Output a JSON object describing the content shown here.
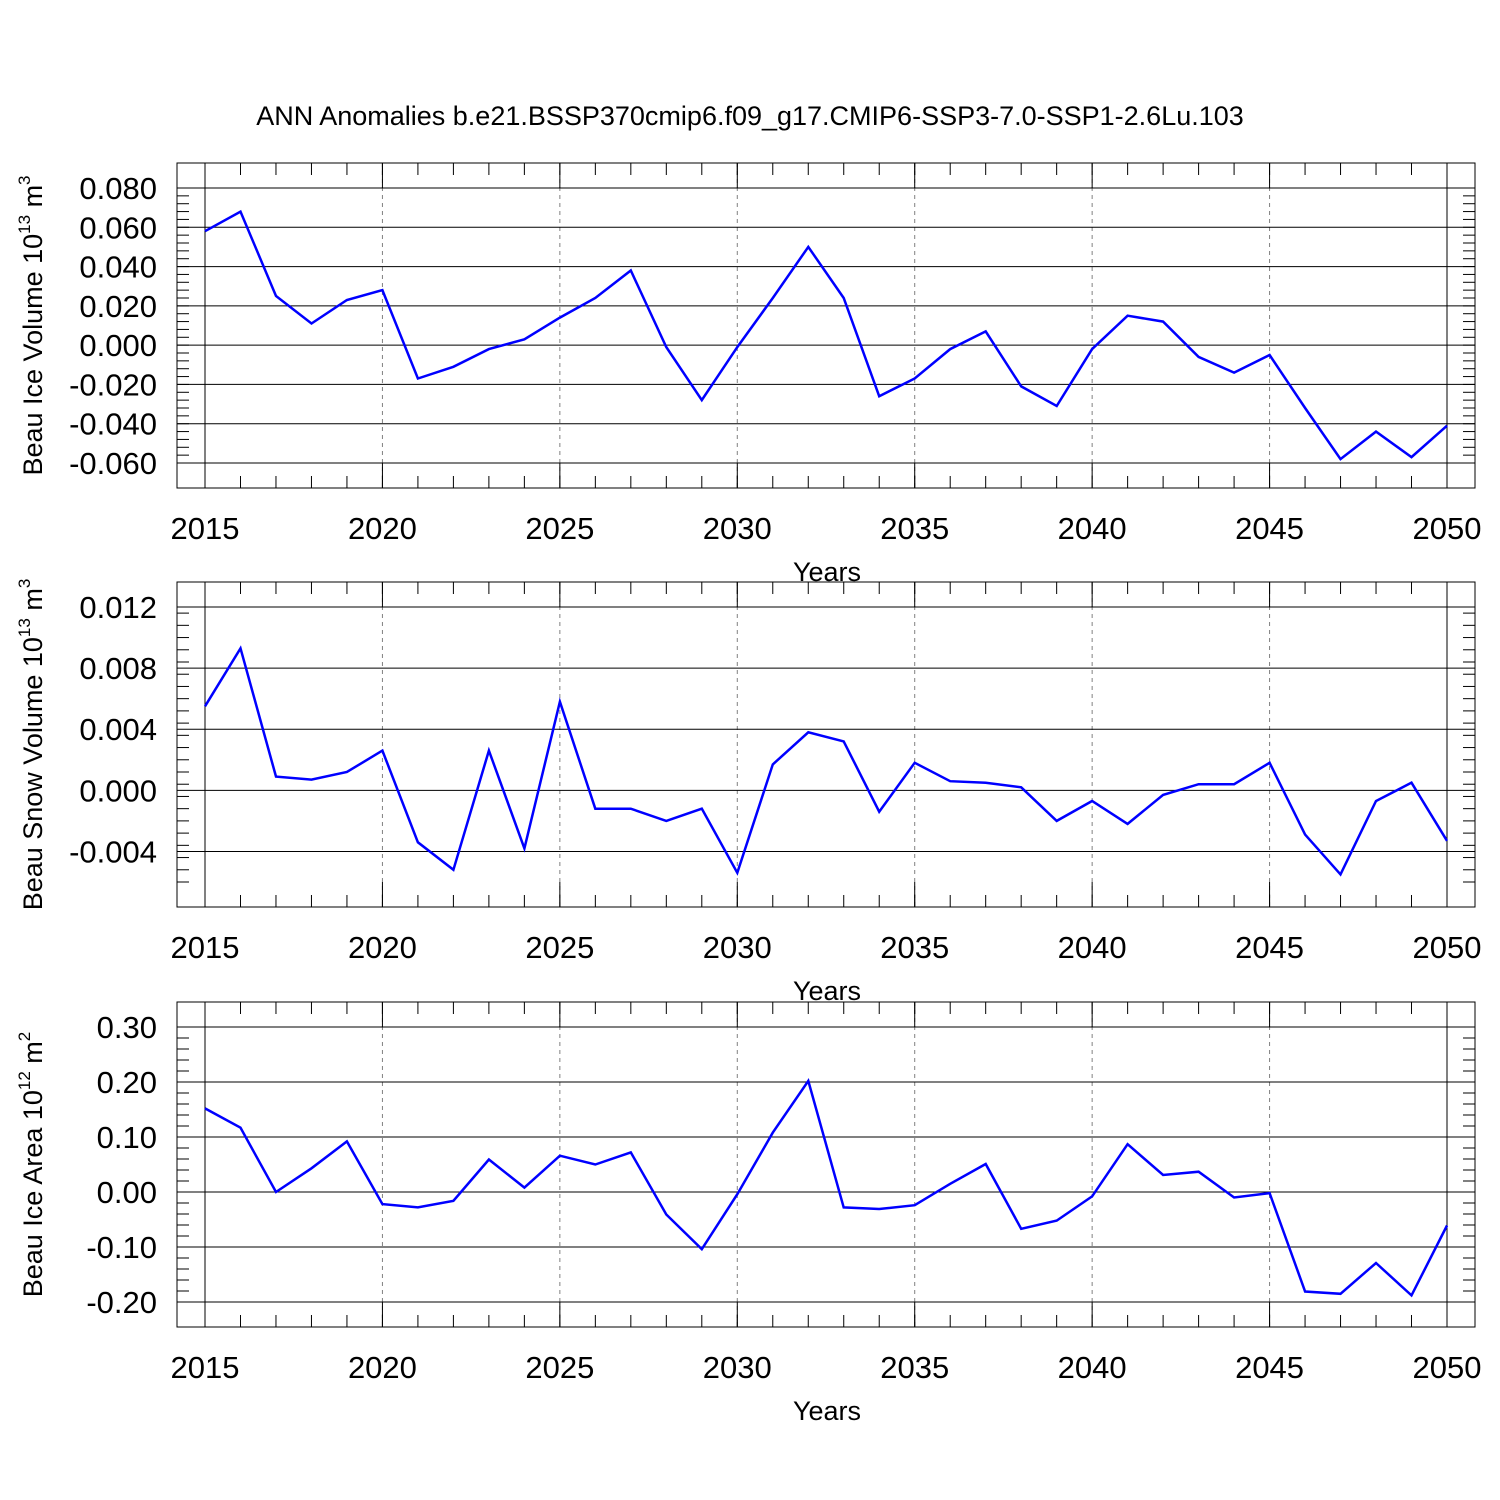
{
  "title": "ANN Anomalies b.e21.BSSP370cmip6.f09_g17.CMIP6-SSP3-7.0-SSP1-2.6Lu.103",
  "colors": {
    "line": "#0000ff",
    "axes": "#000000",
    "grid": "#808080"
  },
  "chart_data": [
    {
      "type": "line",
      "ylabel": {
        "text": "Beau Ice Volume 10",
        "exp": "13",
        "unit": " m",
        "unit_exp": "3"
      },
      "xlabel": "Years",
      "xlim": [
        2015,
        2050
      ],
      "ylim": [
        -0.06,
        0.08
      ],
      "x_ticks": [
        "2015",
        "2020",
        "2025",
        "2030",
        "2035",
        "2040",
        "2045",
        "2050"
      ],
      "y_ticks": [
        "-0.060",
        "-0.040",
        "-0.020",
        "0.000",
        "0.020",
        "0.040",
        "0.060",
        "0.080"
      ],
      "grid": "dashed vertical lines at major x ticks",
      "x": [
        2015,
        2016,
        2017,
        2018,
        2019,
        2020,
        2021,
        2022,
        2023,
        2024,
        2025,
        2026,
        2027,
        2028,
        2029,
        2030,
        2031,
        2032,
        2033,
        2034,
        2035,
        2036,
        2037,
        2038,
        2039,
        2040,
        2041,
        2042,
        2043,
        2044,
        2045,
        2046,
        2047,
        2048,
        2049,
        2050
      ],
      "series": [
        {
          "values": [
            0.058,
            0.068,
            0.025,
            0.011,
            0.023,
            0.028,
            -0.017,
            -0.011,
            -0.002,
            0.003,
            0.014,
            0.024,
            0.038,
            -0.001,
            -0.028,
            -0.001,
            0.024,
            0.05,
            0.024,
            -0.026,
            -0.017,
            -0.002,
            0.007,
            -0.021,
            -0.031,
            -0.002,
            0.015,
            0.012,
            -0.006,
            -0.014,
            -0.005,
            -0.032,
            -0.058,
            -0.044,
            -0.057,
            -0.041
          ]
        }
      ]
    },
    {
      "type": "line",
      "ylabel": {
        "text": "Beau Snow Volume 10",
        "exp": "13",
        "unit": " m",
        "unit_exp": "3"
      },
      "xlabel": "Years",
      "xlim": [
        2015,
        2050
      ],
      "ylim": [
        -0.006,
        0.012
      ],
      "x_ticks": [
        "2015",
        "2020",
        "2025",
        "2030",
        "2035",
        "2040",
        "2045",
        "2050"
      ],
      "y_ticks": [
        "-0.004",
        "0.000",
        "0.004",
        "0.008",
        "0.012"
      ],
      "grid": "dashed vertical lines at major x ticks",
      "x": [
        2015,
        2016,
        2017,
        2018,
        2019,
        2020,
        2021,
        2022,
        2023,
        2024,
        2025,
        2026,
        2027,
        2028,
        2029,
        2030,
        2031,
        2032,
        2033,
        2034,
        2035,
        2036,
        2037,
        2038,
        2039,
        2040,
        2041,
        2042,
        2043,
        2044,
        2045,
        2046,
        2047,
        2048,
        2049,
        2050
      ],
      "series": [
        {
          "values": [
            0.0055,
            0.0093,
            0.0009,
            0.0007,
            0.0012,
            0.0026,
            -0.0034,
            -0.0052,
            0.0026,
            -0.0038,
            0.0058,
            -0.0012,
            -0.0012,
            -0.002,
            -0.0012,
            -0.0054,
            0.0017,
            0.0038,
            0.0032,
            -0.0014,
            0.0018,
            0.0006,
            0.0005,
            0.0002,
            -0.002,
            -0.0007,
            -0.0022,
            -0.0003,
            0.0004,
            0.0004,
            0.0018,
            -0.0029,
            -0.0055,
            -0.0007,
            0.0005,
            -0.0033
          ]
        }
      ]
    },
    {
      "type": "line",
      "ylabel": {
        "text": "Beau Ice Area 10",
        "exp": "12",
        "unit": " m",
        "unit_exp": "2"
      },
      "xlabel": "Years",
      "xlim": [
        2015,
        2050
      ],
      "ylim": [
        -0.2,
        0.3
      ],
      "x_ticks": [
        "2015",
        "2020",
        "2025",
        "2030",
        "2035",
        "2040",
        "2045",
        "2050"
      ],
      "y_ticks": [
        "-0.20",
        "-0.10",
        "0.00",
        "0.10",
        "0.20",
        "0.30"
      ],
      "grid": "dashed vertical lines at major x ticks",
      "x": [
        2015,
        2016,
        2017,
        2018,
        2019,
        2020,
        2021,
        2022,
        2023,
        2024,
        2025,
        2026,
        2027,
        2028,
        2029,
        2030,
        2031,
        2032,
        2033,
        2034,
        2035,
        2036,
        2037,
        2038,
        2039,
        2040,
        2041,
        2042,
        2043,
        2044,
        2045,
        2046,
        2047,
        2048,
        2049,
        2050
      ],
      "series": [
        {
          "values": [
            0.152,
            0.117,
            0.0,
            0.043,
            0.092,
            -0.022,
            -0.028,
            -0.016,
            0.059,
            0.008,
            0.066,
            0.05,
            0.072,
            -0.041,
            -0.104,
            -0.004,
            0.108,
            0.202,
            -0.028,
            -0.031,
            -0.024,
            0.015,
            0.051,
            -0.067,
            -0.052,
            -0.008,
            0.087,
            0.031,
            0.037,
            -0.01,
            -0.002,
            -0.181,
            -0.185,
            -0.129,
            -0.188,
            -0.061
          ]
        }
      ]
    }
  ]
}
